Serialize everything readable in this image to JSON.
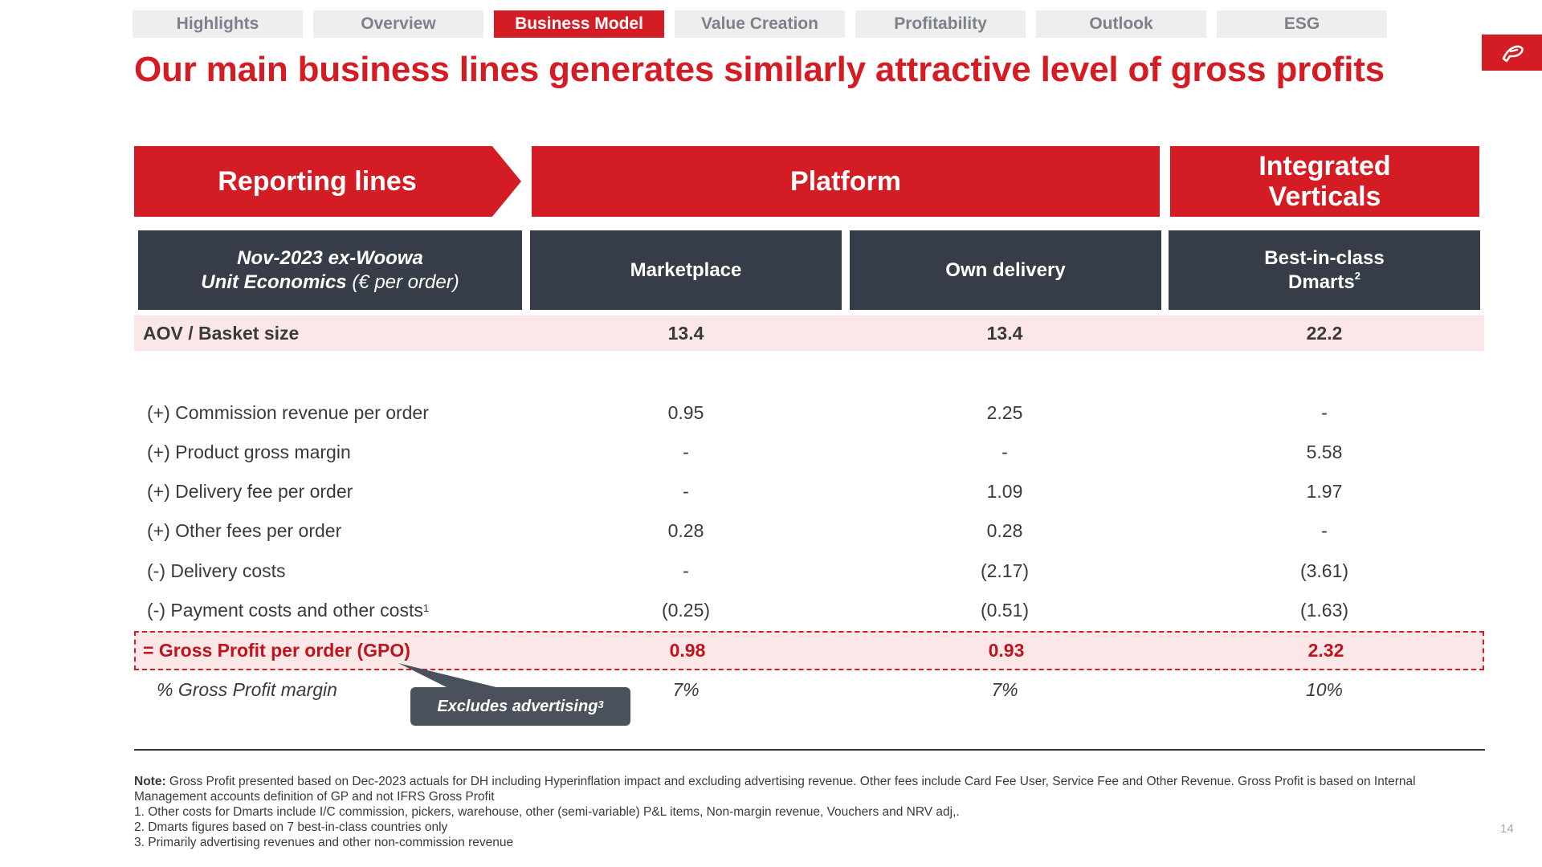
{
  "tabs": [
    {
      "label": "Highlights",
      "active": false
    },
    {
      "label": "Overview",
      "active": false
    },
    {
      "label": "Business Model",
      "active": true
    },
    {
      "label": "Value Creation",
      "active": false
    },
    {
      "label": "Profitability",
      "active": false
    },
    {
      "label": "Outlook",
      "active": false
    },
    {
      "label": "ESG",
      "active": false
    }
  ],
  "logo": {
    "icon": "brand-logo-icon",
    "color": "#d41c24"
  },
  "title": "Our main business lines generates similarly attractive level of gross profits",
  "bands": {
    "reporting": "Reporting lines",
    "platform": "Platform",
    "verticals_line1": "Integrated",
    "verticals_line2": "Verticals"
  },
  "column_headers": {
    "unit_economics_line1": "Nov-2023 ex-Woowa",
    "unit_economics_line2_bold": "Unit Economics",
    "unit_economics_line2_unit": "(€ per order)",
    "marketplace": "Marketplace",
    "own_delivery": "Own delivery",
    "dmarts_line1": "Best-in-class",
    "dmarts_line2": "Dmarts",
    "dmarts_sup": "2"
  },
  "rows": {
    "aov": {
      "label": "AOV / Basket size",
      "values": [
        "13.4",
        "13.4",
        "22.2"
      ]
    },
    "commission": {
      "label": "(+) Commission revenue per order",
      "values": [
        "0.95",
        "2.25",
        "-"
      ]
    },
    "product_margin": {
      "label": "(+) Product gross margin",
      "values": [
        "-",
        "-",
        "5.58"
      ]
    },
    "delivery_fee": {
      "label": "(+) Delivery fee per order",
      "values": [
        "-",
        "1.09",
        "1.97"
      ]
    },
    "other_fees": {
      "label": "(+) Other fees per order",
      "values": [
        "0.28",
        "0.28",
        "-"
      ]
    },
    "delivery_costs": {
      "label": "(-) Delivery costs",
      "values": [
        "-",
        "(2.17)",
        "(3.61)"
      ]
    },
    "payment_costs": {
      "label": "(-) Payment costs and other costs",
      "sup": "1",
      "values": [
        "(0.25)",
        "(0.51)",
        "(1.63)"
      ]
    },
    "gpo": {
      "label": "= Gross Profit per order (GPO)",
      "values": [
        "0.98",
        "0.93",
        "2.32"
      ]
    },
    "margin": {
      "label": "% Gross Profit margin",
      "values": [
        "7%",
        "7%",
        "10%"
      ]
    }
  },
  "callout": {
    "text": "Excludes advertising",
    "sup": "3"
  },
  "notes": {
    "note_label": "Note:",
    "note_text": " Gross Profit presented based on Dec-2023 actuals for DH including Hyperinflation impact and excluding advertising revenue. Other fees include Card Fee User, Service Fee and Other Revenue. Gross Profit is based on Internal Management accounts definition of GP and not IFRS Gross Profit",
    "footnote1": "1. Other costs for Dmarts include I/C commission, pickers, warehouse, other (semi-variable) P&L items, Non-margin revenue, Vouchers and NRV adj,.",
    "footnote2": "2. Dmarts figures based on 7 best-in-class countries only",
    "footnote3": "3. Primarily advertising revenues and other non-commission revenue"
  },
  "page_number": "14"
}
